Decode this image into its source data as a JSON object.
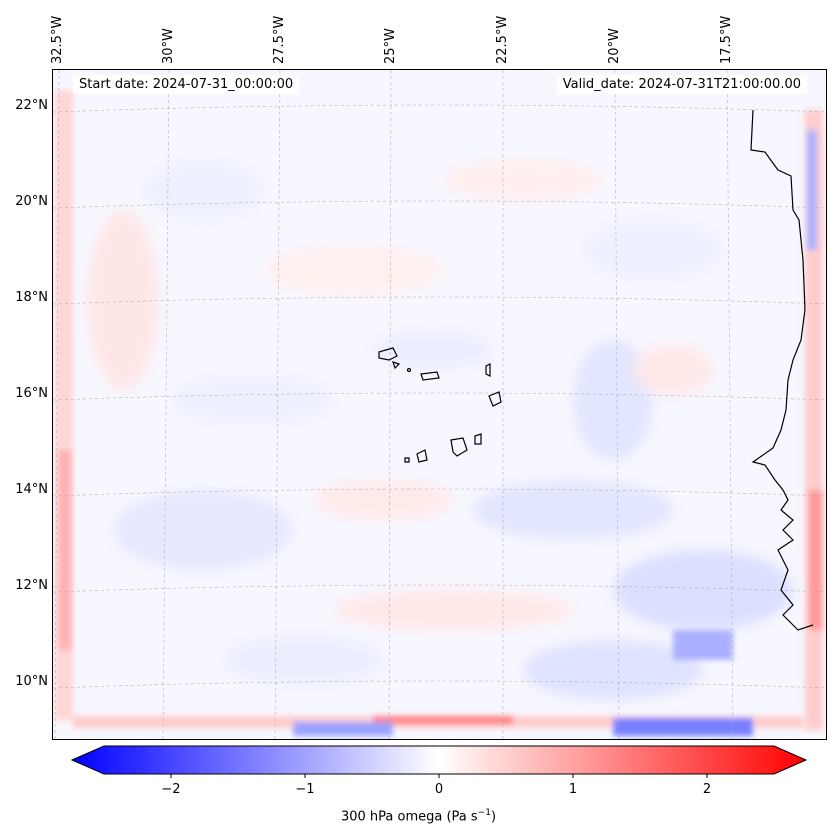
{
  "header": {
    "start_date": "Start date: 2024-07-31_00:00:00",
    "valid_date": "Valid_date: 2024-07-31T21:00:00.00"
  },
  "axes": {
    "lon_labels": [
      "32.5°W",
      "30°W",
      "27.5°W",
      "25°W",
      "22.5°W",
      "20°W",
      "17.5°W"
    ],
    "lat_labels": [
      "22°N",
      "20°N",
      "18°N",
      "16°N",
      "14°N",
      "12°N",
      "10°N"
    ]
  },
  "colorbar": {
    "ticks": [
      "−2",
      "−1",
      "0",
      "1",
      "2"
    ],
    "label_main": "300 hPa omega (Pa s",
    "label_sup": "−1",
    "label_end": ")",
    "colormap": "bwr",
    "range": [
      -2.7,
      2.7
    ]
  },
  "colors": {
    "negative": "#0000ff",
    "positive": "#ff0000",
    "coast": "#000000"
  }
}
